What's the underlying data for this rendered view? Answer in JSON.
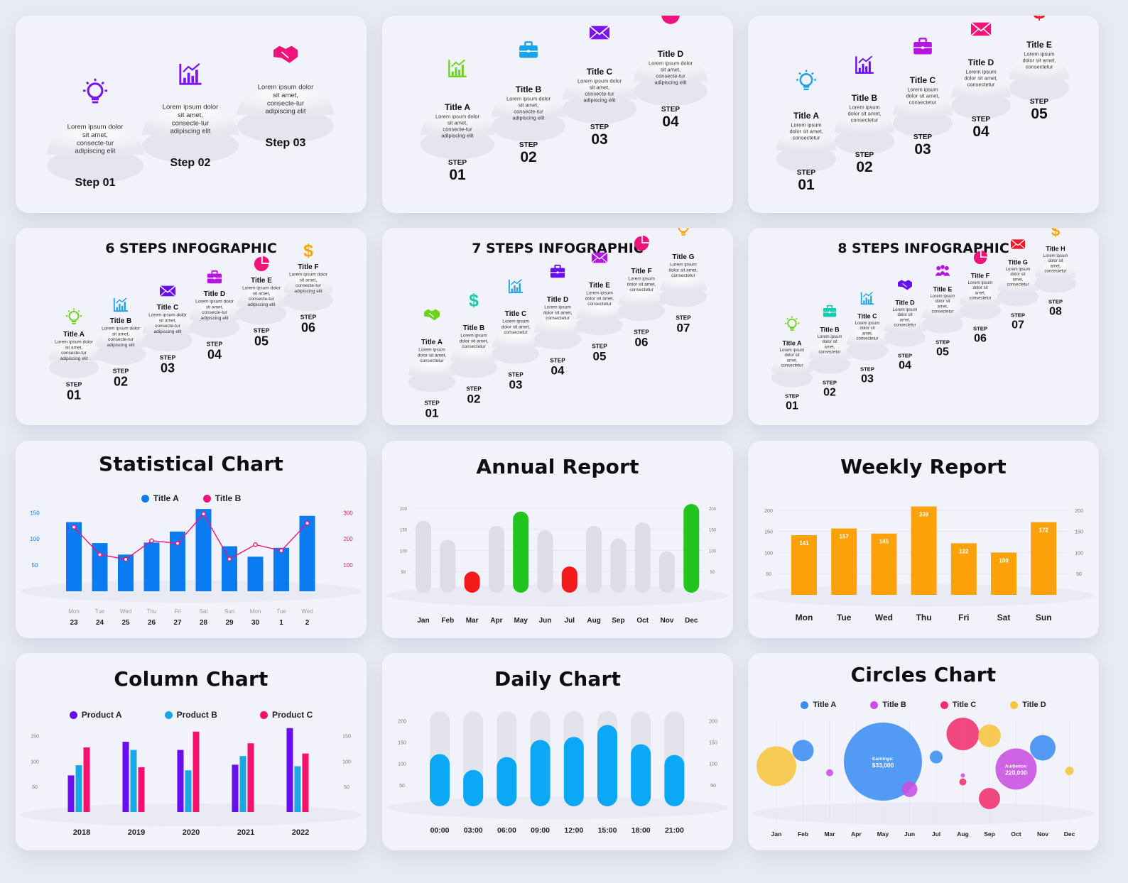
{
  "palette": {
    "blue": "#0a7bf0",
    "magenta": "#f0147a",
    "green": "#22c51d",
    "red": "#f21a1a",
    "grey": "#dcdde5",
    "orange": "#fba20a",
    "purple": "#6a0ef2",
    "cyan": "#19a7e6",
    "pink": "#f5126e",
    "sky": "#0aa8f5"
  },
  "step_cards": [
    {
      "title": "",
      "steps": [
        {
          "step_word": "Step",
          "num": "01",
          "text": "Lorem ipsum dolor sit amet, consecte-tur adipiscing elit",
          "icon": "bulb-icon",
          "color": "#7a14f0"
        },
        {
          "step_word": "Step",
          "num": "02",
          "text": "Lorem ipsum dolor sit amet, consecte-tur adipiscing elit",
          "icon": "chart-icon",
          "color": "#7a14f0"
        },
        {
          "step_word": "Step",
          "num": "03",
          "text": "Lorem ipsum dolor sit amet, consecte-tur adipiscing elit",
          "icon": "handshake-icon",
          "color": "#f0147a"
        }
      ]
    },
    {
      "title": "",
      "steps": [
        {
          "step_word": "STEP",
          "num": "01",
          "title": "Title A",
          "text": "Lorem ipsum dolor sit amet, consecte-tur adipiscing elit",
          "icon": "chart-icon",
          "color": "#6fd11c"
        },
        {
          "step_word": "STEP",
          "num": "02",
          "title": "Title B",
          "text": "Lorem ipsum dolor sit amet, consecte-tur adipiscing elit",
          "icon": "briefcase-icon",
          "color": "#1aa3e8"
        },
        {
          "step_word": "STEP",
          "num": "03",
          "title": "Title C",
          "text": "Lorem ipsum dolor sit amet, consecte-tur adipiscing elit",
          "icon": "mail-icon",
          "color": "#7a14f0"
        },
        {
          "step_word": "STEP",
          "num": "04",
          "title": "Title D",
          "text": "Lorem ipsum dolor sit amet, consecte-tur adipiscing elit",
          "icon": "pie-icon",
          "color": "#f0147a"
        }
      ]
    },
    {
      "title": "",
      "steps": [
        {
          "step_word": "STEP",
          "num": "01",
          "title": "Title A",
          "text": "Lorem ipsum dolor sit amet, consectetur",
          "icon": "bulb-icon",
          "color": "#1aa3e8"
        },
        {
          "step_word": "STEP",
          "num": "02",
          "title": "Title B",
          "text": "Lorem ipsum dolor sit amet, consectetur",
          "icon": "chart-icon",
          "color": "#6a0ef2"
        },
        {
          "step_word": "STEP",
          "num": "03",
          "title": "Title C",
          "text": "Lorem ipsum dolor sit amet, consectetur",
          "icon": "briefcase-icon",
          "color": "#b614e0"
        },
        {
          "step_word": "STEP",
          "num": "04",
          "title": "Title D",
          "text": "Lorem ipsum dolor sit amet, consectetur",
          "icon": "mail-icon",
          "color": "#f0147a"
        },
        {
          "step_word": "STEP",
          "num": "05",
          "title": "Title E",
          "text": "Lorem ipsum dolor sit amet, consectetur",
          "icon": "dollar-icon",
          "color": "#f21a2a"
        }
      ]
    },
    {
      "title": "6 STEPS INFOGRAPHIC",
      "steps": [
        {
          "step_word": "STEP",
          "num": "01",
          "title": "Title A",
          "text": "Lorem ipsum dolor sit amet, consecte-tur adipiscing elit",
          "icon": "bulb-icon",
          "color": "#6fd11c"
        },
        {
          "step_word": "STEP",
          "num": "02",
          "title": "Title B",
          "text": "Lorem ipsum dolor sit amet, consecte-tur adipiscing elit",
          "icon": "chart-icon",
          "color": "#1aa3e8"
        },
        {
          "step_word": "STEP",
          "num": "03",
          "title": "Title C",
          "text": "Lorem ipsum dolor sit amet, consecte-tur adipiscing elit",
          "icon": "mail-icon",
          "color": "#6a0ef2"
        },
        {
          "step_word": "STEP",
          "num": "04",
          "title": "Title D",
          "text": "Lorem ipsum dolor sit amet, consecte-tur adipiscing elit",
          "icon": "briefcase-icon",
          "color": "#b614e0"
        },
        {
          "step_word": "STEP",
          "num": "05",
          "title": "Title E",
          "text": "Lorem ipsum dolor sit amet, consecte-tur adipiscing elit",
          "icon": "pie-icon",
          "color": "#f0147a"
        },
        {
          "step_word": "STEP",
          "num": "06",
          "title": "Title F",
          "text": "Lorem ipsum dolor sit amet, consecte-tur adipiscing elit",
          "icon": "dollar-icon",
          "color": "#fba20a"
        }
      ]
    },
    {
      "title": "7 STEPS INFOGRAPHIC",
      "steps": [
        {
          "step_word": "STEP",
          "num": "01",
          "title": "Title A",
          "text": "Lorem ipsum dolor sit amet, consectetur",
          "icon": "handshake-icon",
          "color": "#6fd11c"
        },
        {
          "step_word": "STEP",
          "num": "02",
          "title": "Title B",
          "text": "Lorem ipsum dolor sit amet, consectetur",
          "icon": "dollar-icon",
          "color": "#19c9b0"
        },
        {
          "step_word": "STEP",
          "num": "03",
          "title": "Title C",
          "text": "Lorem ipsum dolor sit amet, consectetur",
          "icon": "chart-icon",
          "color": "#1aa3e8"
        },
        {
          "step_word": "STEP",
          "num": "04",
          "title": "Title D",
          "text": "Lorem ipsum dolor sit amet, consectetur",
          "icon": "briefcase-icon",
          "color": "#6a0ef2"
        },
        {
          "step_word": "STEP",
          "num": "05",
          "title": "Title E",
          "text": "Lorem ipsum dolor sit amet, consectetur",
          "icon": "mail-icon",
          "color": "#b614e0"
        },
        {
          "step_word": "STEP",
          "num": "06",
          "title": "Title F",
          "text": "Lorem ipsum dolor sit amet, consectetur",
          "icon": "pie-icon",
          "color": "#f0147a"
        },
        {
          "step_word": "STEP",
          "num": "07",
          "title": "Title G",
          "text": "Lorem ipsum dolor sit amet, consectetur",
          "icon": "bulb-icon",
          "color": "#fba20a"
        }
      ]
    },
    {
      "title": "8 STEPS INFOGRAPHIC",
      "steps": [
        {
          "step_word": "STEP",
          "num": "01",
          "title": "Title A",
          "text": "Lorem ipsum dolor sit amet, consectetur",
          "icon": "bulb-icon",
          "color": "#6fd11c"
        },
        {
          "step_word": "STEP",
          "num": "02",
          "title": "Title B",
          "text": "Lorem ipsum dolor sit amet, consectetur",
          "icon": "briefcase-icon",
          "color": "#19c9b0"
        },
        {
          "step_word": "STEP",
          "num": "03",
          "title": "Title C",
          "text": "Lorem ipsum dolor sit amet, consectetur",
          "icon": "chart-icon",
          "color": "#1aa3e8"
        },
        {
          "step_word": "STEP",
          "num": "04",
          "title": "Title D",
          "text": "Lorem ipsum dolor sit amet, consectetur",
          "icon": "handshake-icon",
          "color": "#6a0ef2"
        },
        {
          "step_word": "STEP",
          "num": "05",
          "title": "Title E",
          "text": "Lorem ipsum dolor sit amet, consectetur",
          "icon": "people-icon",
          "color": "#b614e0"
        },
        {
          "step_word": "STEP",
          "num": "06",
          "title": "Title F",
          "text": "Lorem ipsum dolor sit amet, consectetur",
          "icon": "pie-icon",
          "color": "#f0147a"
        },
        {
          "step_word": "STEP",
          "num": "07",
          "title": "Title G",
          "text": "Lorem ipsum dolor sit amet, consectetur",
          "icon": "mail-icon",
          "color": "#f21a2a"
        },
        {
          "step_word": "STEP",
          "num": "08",
          "title": "Title H",
          "text": "Lorem ipsum dolor sit amet, consectetur",
          "icon": "dollar-icon",
          "color": "#fba20a"
        }
      ]
    }
  ],
  "chart_data": [
    {
      "id": "statistical",
      "type": "bar",
      "title": "Statistical Chart",
      "legend": [
        "Title A",
        "Title B"
      ],
      "legend_colors": [
        "#0a7bf0",
        "#f0147a"
      ],
      "categories_top": [
        "Mon",
        "Tue",
        "Wed",
        "Thu",
        "Fri",
        "Sat",
        "Sun",
        "Mon",
        "Tue",
        "Wed"
      ],
      "categories": [
        "23",
        "24",
        "25",
        "26",
        "27",
        "28",
        "29",
        "30",
        "1",
        "2"
      ],
      "ylim": [
        0,
        170
      ],
      "yticks_left": [
        "150",
        "100",
        "50"
      ],
      "yticks_right": [
        "300",
        "200",
        "100"
      ],
      "series": [
        {
          "name": "Title A",
          "type": "bar",
          "values": [
            132,
            92,
            70,
            93,
            114,
            157,
            86,
            66,
            83,
            144
          ]
        },
        {
          "name": "Title B",
          "type": "line",
          "values": [
            245,
            140,
            122,
            193,
            183,
            295,
            123,
            178,
            155,
            260
          ]
        }
      ],
      "y2lim": [
        0,
        340
      ]
    },
    {
      "id": "annual",
      "type": "bar",
      "title": "Annual Report",
      "categories": [
        "Jan",
        "Feb",
        "Mar",
        "Apr",
        "May",
        "Jun",
        "Jul",
        "Aug",
        "Sep",
        "Oct",
        "Nov",
        "Dec"
      ],
      "values": [
        170,
        125,
        50,
        158,
        192,
        148,
        62,
        158,
        128,
        166,
        98,
        210
      ],
      "highlight": [
        "grey",
        "grey",
        "red",
        "grey",
        "green",
        "grey",
        "red",
        "grey",
        "grey",
        "grey",
        "grey",
        "green"
      ],
      "ylim": [
        0,
        215
      ],
      "yticks": [
        "200",
        "150",
        "100",
        "50"
      ]
    },
    {
      "id": "weekly",
      "type": "bar",
      "title": "Weekly Report",
      "categories": [
        "Mon",
        "Tue",
        "Wed",
        "Thu",
        "Fri",
        "Sat",
        "Sun"
      ],
      "values": [
        141,
        157,
        145,
        209,
        122,
        100,
        172
      ],
      "value_labels": [
        "141",
        "157",
        "145",
        "209",
        "122",
        "100",
        "172"
      ],
      "ylim": [
        0,
        210
      ],
      "yticks": [
        "200",
        "150",
        "100",
        "50"
      ]
    },
    {
      "id": "column",
      "type": "bar",
      "title": "Column Chart",
      "legend": [
        "Product A",
        "Product B",
        "Product C"
      ],
      "legend_colors": [
        "#6a0ef2",
        "#19a7e6",
        "#f5126e"
      ],
      "categories": [
        "2018",
        "2019",
        "2020",
        "2021",
        "2022"
      ],
      "series": [
        {
          "name": "Product A",
          "values": [
            72,
            138,
            122,
            93,
            165
          ]
        },
        {
          "name": "Product B",
          "values": [
            92,
            122,
            82,
            110,
            90
          ]
        },
        {
          "name": "Product C",
          "values": [
            127,
            88,
            158,
            135,
            115
          ]
        }
      ],
      "ylim": [
        0,
        175
      ],
      "yticks": [
        "150",
        "100",
        "50"
      ]
    },
    {
      "id": "daily",
      "type": "bar",
      "title": "Daily Chart",
      "categories": [
        "00:00",
        "03:00",
        "06:00",
        "09:00",
        "12:00",
        "15:00",
        "18:00",
        "21:00"
      ],
      "values": [
        122,
        85,
        115,
        155,
        162,
        190,
        145,
        120
      ],
      "max_values": [
        222,
        222,
        222,
        222,
        222,
        222,
        222,
        222
      ],
      "ylim": [
        0,
        222
      ],
      "yticks": [
        "200",
        "150",
        "100",
        "50"
      ]
    },
    {
      "id": "circles",
      "type": "scatter",
      "title": "Circles Chart",
      "legend": [
        "Title A",
        "Title B",
        "Title C",
        "Title D"
      ],
      "legend_colors": [
        "#3b8df2",
        "#c94fe3",
        "#f0306e",
        "#f7c43d"
      ],
      "categories": [
        "Jan",
        "Feb",
        "Mar",
        "Apr",
        "May",
        "Jun",
        "Jul",
        "Aug",
        "Sep",
        "Oct",
        "Nov",
        "Dec"
      ],
      "bubbles": [
        {
          "series": "Title D",
          "x": "Jan",
          "y": 0.45,
          "r": 28,
          "label": ""
        },
        {
          "series": "Title A",
          "x": "Feb",
          "y": 0.62,
          "r": 15,
          "label": ""
        },
        {
          "series": "Title B",
          "x": "Mar",
          "y": 0.38,
          "r": 5,
          "label": ""
        },
        {
          "series": "Title A",
          "x": "May",
          "y": 0.5,
          "r": 55,
          "label": "Earnings:",
          "value": "$33,000"
        },
        {
          "series": "Title B",
          "x": "Jun",
          "y": 0.2,
          "r": 11,
          "label": ""
        },
        {
          "series": "Title C",
          "x": "Aug",
          "y": 0.8,
          "r": 23,
          "label": ""
        },
        {
          "series": "Title A",
          "x": "Jul",
          "y": 0.55,
          "r": 9,
          "label": ""
        },
        {
          "series": "Title D",
          "x": "Sep",
          "y": 0.78,
          "r": 16,
          "label": ""
        },
        {
          "series": "Title C",
          "x": "Aug",
          "y": 0.28,
          "r": 5,
          "label": ""
        },
        {
          "series": "Title B",
          "x": "Aug",
          "y": 0.35,
          "r": 3,
          "label": ""
        },
        {
          "series": "Title C",
          "x": "Sep",
          "y": 0.1,
          "r": 15,
          "label": ""
        },
        {
          "series": "Title B",
          "x": "Oct",
          "y": 0.42,
          "r": 29,
          "label": "Audience:",
          "value": "220,000"
        },
        {
          "series": "Title A",
          "x": "Nov",
          "y": 0.65,
          "r": 18,
          "label": ""
        },
        {
          "series": "Title D",
          "x": "Dec",
          "y": 0.4,
          "r": 6,
          "label": ""
        }
      ]
    }
  ]
}
